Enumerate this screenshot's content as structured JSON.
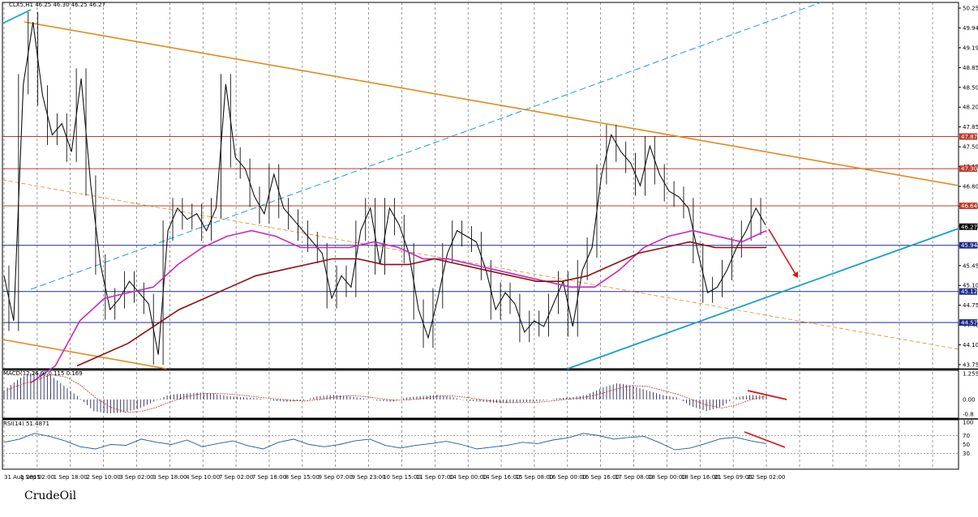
{
  "caption": "CrudeOil",
  "chart_data": {
    "type": "line",
    "symbol_header": "CLX5,H1",
    "ohlc_header": "46.25 46.30 46.25 46.27",
    "price_ylim": [
      43.75,
      50.25
    ],
    "price_ticks": [
      "50.25",
      "49.94",
      "49.19",
      "48.85",
      "48.50",
      "48.20",
      "47.85",
      "47.50",
      "47.15",
      "46.80",
      "46.45",
      "46.15",
      "45.80",
      "45.45",
      "45.10",
      "44.75",
      "44.40",
      "44.10",
      "43.75"
    ],
    "price_levels": [
      {
        "value": 47.87,
        "label": "47.87",
        "color": "#c0392b"
      },
      {
        "value": 47.3,
        "label": "47.30",
        "color": "#c0392b"
      },
      {
        "value": 46.64,
        "label": "46.64",
        "color": "#c0392b"
      },
      {
        "value": 46.27,
        "label": "46.27",
        "color": "#000000"
      },
      {
        "value": 45.94,
        "label": "45.94",
        "color": "#1f2a8c"
      },
      {
        "value": 45.12,
        "label": "45.12",
        "color": "#1f2a8c"
      },
      {
        "value": 44.57,
        "label": "44.57",
        "color": "#1f2a8c"
      }
    ],
    "x_labels": [
      "31 Aug 2015",
      "1 Sep 02:00",
      "1 Sep 18:00",
      "2 Sep 10:00",
      "3 Sep 02:00",
      "3 Sep 18:00",
      "4 Sep 10:00",
      "7 Sep 02:00",
      "7 Sep 18:00",
      "8 Sep 15:00",
      "9 Sep 07:00",
      "9 Sep 23:00",
      "10 Sep 15:00",
      "11 Sep 07:00",
      "14 Sep 00:00",
      "14 Sep 16:00",
      "15 Sep 08:00",
      "16 Sep 00:00",
      "16 Sep 16:00",
      "17 Sep 08:00",
      "18 Sep 00:00",
      "18 Sep 16:00",
      "21 Sep 09:00",
      "22 Sep 02:00"
    ],
    "price_series": [
      45.4,
      44.6,
      48.8,
      49.9,
      48.6,
      47.9,
      48.1,
      47.6,
      48.9,
      47.0,
      45.6,
      44.8,
      45.0,
      45.3,
      45.1,
      44.9,
      44.0,
      46.2,
      46.6,
      46.4,
      46.5,
      46.2,
      46.6,
      48.8,
      47.5,
      47.3,
      46.8,
      46.5,
      47.2,
      46.6,
      46.4,
      46.2,
      46.0,
      45.8,
      45.0,
      45.4,
      45.2,
      46.2,
      46.6,
      45.6,
      46.6,
      46.3,
      45.8,
      44.8,
      44.3,
      45.0,
      45.8,
      46.2,
      46.1,
      46.0,
      45.5,
      44.8,
      45.1,
      44.9,
      44.4,
      44.6,
      44.5,
      44.9,
      45.3,
      44.5,
      45.5,
      45.9,
      47.2,
      47.9,
      47.6,
      47.4,
      47.0,
      47.7,
      47.2,
      46.9,
      46.8,
      46.6,
      45.8,
      45.1,
      45.2,
      45.5,
      45.9,
      46.2,
      46.6,
      46.3
    ],
    "ma_fast": [
      43.5,
      43.8,
      44.6,
      45.0,
      45.1,
      45.2,
      45.6,
      45.9,
      46.1,
      46.2,
      46.1,
      45.9,
      45.9,
      45.9,
      46.0,
      45.9,
      45.7,
      45.7,
      45.6,
      45.5,
      45.4,
      45.3,
      45.2,
      45.2,
      45.5,
      45.9,
      46.1,
      46.2,
      46.1,
      46.0,
      46.2
    ],
    "ma_slow": [
      43.8,
      44.0,
      44.2,
      44.5,
      44.8,
      45.0,
      45.2,
      45.4,
      45.5,
      45.6,
      45.7,
      45.7,
      45.6,
      45.6,
      45.7,
      45.6,
      45.5,
      45.4,
      45.3,
      45.3,
      45.4,
      45.6,
      45.8,
      45.9,
      46.0,
      45.9,
      45.9,
      45.9
    ],
    "macd_header": "MACD(12,26,9) 0.115 0.169",
    "macd_ylim": [
      -0.8,
      1.255
    ],
    "macd_ticks": [
      "1.255",
      "0.00",
      "-0.8"
    ],
    "macd_values": [
      0.4,
      0.9,
      1.2,
      1.1,
      0.6,
      0.1,
      -0.5,
      -0.6,
      -0.55,
      -0.4,
      -0.1,
      0.2,
      0.25,
      0.3,
      0.25,
      0.15,
      0.1,
      0.05,
      -0.05,
      -0.1,
      -0.05,
      0.15,
      0.2,
      0.15,
      0.05,
      -0.05,
      -0.1,
      0.1,
      0.15,
      0.2,
      0.1,
      -0.05,
      -0.1,
      -0.15,
      -0.15,
      -0.1,
      -0.05,
      0.05,
      0.1,
      0.2,
      0.5,
      0.7,
      0.6,
      0.4,
      0.2,
      0.1,
      -0.3,
      -0.5,
      -0.3,
      0.1,
      0.2,
      0.15
    ],
    "rsi_header": "RSI(14) 51.4871",
    "rsi_ylim": [
      0,
      100
    ],
    "rsi_ticks": [
      "100",
      "70",
      "50",
      "30"
    ],
    "rsi_values": [
      55,
      62,
      75,
      68,
      58,
      45,
      40,
      50,
      48,
      62,
      55,
      50,
      60,
      45,
      52,
      58,
      47,
      40,
      55,
      62,
      50,
      45,
      50,
      58,
      62,
      48,
      42,
      48,
      52,
      57,
      50,
      40,
      44,
      48,
      55,
      52,
      60,
      65,
      75,
      70,
      62,
      66,
      68,
      54,
      38,
      42,
      52,
      63,
      66,
      58,
      52
    ]
  }
}
